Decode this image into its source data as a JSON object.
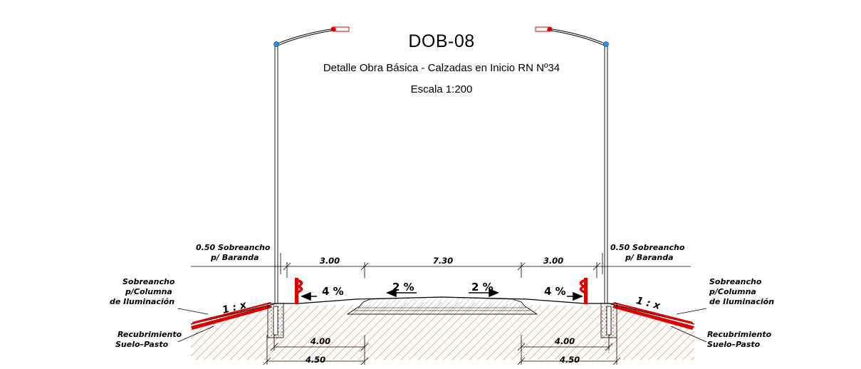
{
  "title": "DOB-08",
  "subtitle": "Detalle Obra Básica - Calzadas en Inicio RN Nº34",
  "scale": "Escala 1:200",
  "labels": {
    "sobreancho_baranda_left_1": "0.50  Sobreancho",
    "sobreancho_baranda_left_2": "p/  Baranda",
    "sobreancho_baranda_right_1": "0.50  Sobreancho",
    "sobreancho_baranda_right_2": "p/  Baranda",
    "columna_left_1": "Sobreancho",
    "columna_left_2": "p/Columna",
    "columna_left_3": "de  Iluminación",
    "columna_right_1": "Sobreancho",
    "columna_right_2": "p/Columna",
    "columna_right_3": "de  Iluminación",
    "recub_left_1": "Recubrimiento",
    "recub_left_2": "Suelo–Pasto",
    "recub_right_1": "Recubrimiento",
    "recub_right_2": "Suelo–Pasto"
  },
  "dimensions": {
    "shoulder_left": "3.00",
    "roadway": "7.30",
    "shoulder_right": "3.00",
    "base_left_inner": "4.00",
    "base_left_outer": "4.50",
    "base_right_inner": "4.00",
    "base_right_outer": "4.50"
  },
  "slopes": {
    "shoulder_left": "4 %",
    "road_left": "2 %",
    "road_right": "2 %",
    "shoulder_right": "4 %",
    "embankment_left": "1 : x",
    "embankment_right": "1 : x"
  },
  "colors": {
    "line": "#000000",
    "accent_red": "#e00000",
    "lamp_blue": "#1e90ff",
    "soil_hatch": "#d9a98a"
  }
}
